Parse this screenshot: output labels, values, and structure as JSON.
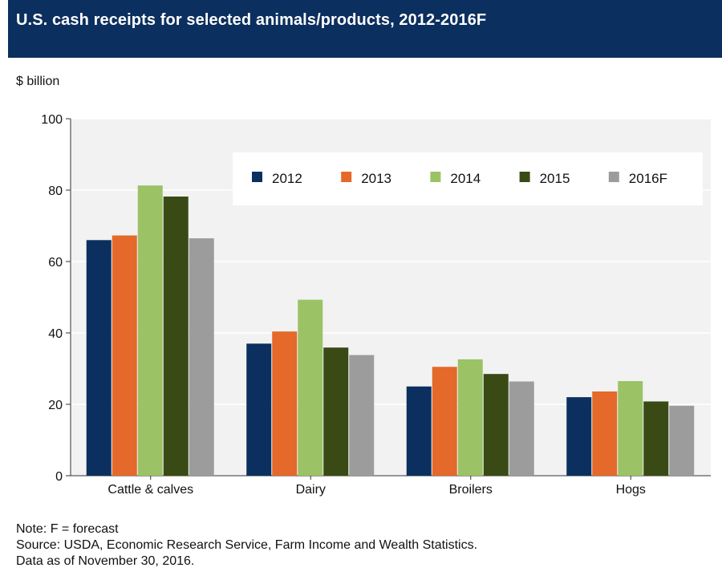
{
  "title": "U.S. cash receipts for selected animals/products, 2012-2016F",
  "chart_data": {
    "type": "bar",
    "unit_label": "$ billion",
    "categories": [
      "Cattle & calves",
      "Dairy",
      "Broilers",
      "Hogs"
    ],
    "series": [
      {
        "name": "2012",
        "color": "#0b2f5e",
        "values": [
          66.0,
          37.0,
          25.0,
          22.0
        ]
      },
      {
        "name": "2013",
        "color": "#e4692a",
        "values": [
          67.3,
          40.4,
          30.5,
          23.6
        ]
      },
      {
        "name": "2014",
        "color": "#9bc366",
        "values": [
          81.3,
          49.3,
          32.6,
          26.5
        ]
      },
      {
        "name": "2015",
        "color": "#3a4a14",
        "values": [
          78.2,
          35.9,
          28.5,
          20.8
        ]
      },
      {
        "name": "2016F",
        "color": "#9c9c9c",
        "values": [
          66.5,
          33.8,
          26.4,
          19.6
        ]
      }
    ],
    "ylim": [
      0,
      100
    ],
    "yticks": [
      0,
      20,
      40,
      60,
      80,
      100
    ],
    "grid": true,
    "legend_position": "top-right"
  },
  "notes": {
    "line1": "Note: F = forecast",
    "line2": "Source: USDA, Economic Research Service, Farm Income and Wealth Statistics.",
    "line3": "Data as of November 30, 2016."
  }
}
